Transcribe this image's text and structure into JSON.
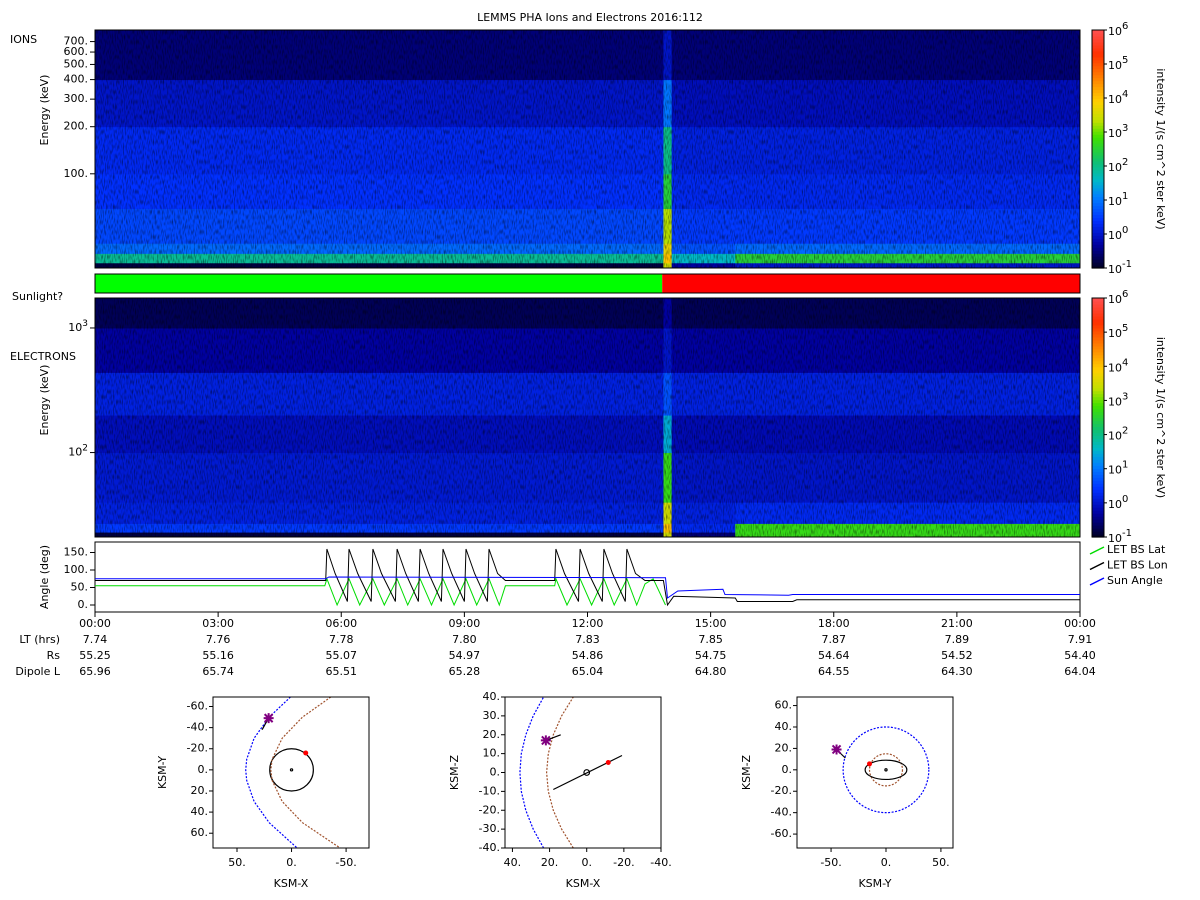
{
  "chart_data": [
    {
      "type": "heatmap",
      "title": "LEMMS PHA Ions and Electrons  2016:112",
      "label": "IONS",
      "ylabel": "Energy (keV)",
      "log_y": true,
      "ylim": [
        25,
        830
      ],
      "yticks": [
        {
          "value": 100,
          "label": "100."
        },
        {
          "value": 200,
          "label": "200."
        },
        {
          "value": 300,
          "label": "300."
        },
        {
          "value": 400,
          "label": "400."
        },
        {
          "value": 500,
          "label": "500."
        },
        {
          "value": 600,
          "label": "600."
        },
        {
          "value": 700,
          "label": "700."
        }
      ],
      "x_edges": [
        0,
        6,
        12,
        13.85,
        14.05,
        15.6,
        24
      ],
      "y_edges": [
        25,
        27,
        31,
        36,
        60,
        100,
        200,
        400,
        830
      ],
      "values": [
        [
          0.15,
          0.15,
          0.15,
          3000,
          0.5,
          1
        ],
        [
          80,
          80,
          80,
          10000,
          40,
          300
        ],
        [
          8,
          8,
          8,
          5000,
          5,
          8
        ],
        [
          4,
          4,
          4,
          2000,
          3,
          3
        ],
        [
          2.5,
          2.5,
          2.5,
          300,
          2,
          2
        ],
        [
          2,
          2,
          2,
          100,
          1.5,
          1.5
        ],
        [
          1,
          1,
          1,
          10,
          0.8,
          0.8
        ],
        [
          0.3,
          0.3,
          0.3,
          1,
          0.3,
          0.3
        ]
      ],
      "colorbar": {
        "label": "intensity 1/(s cm^2 ster keV)",
        "lim": [
          0.1,
          1000000
        ],
        "ticks": [
          {
            "value": 0.1,
            "label": "10",
            "exponent": "-1"
          },
          {
            "value": 1,
            "label": "10",
            "exponent": "0"
          },
          {
            "value": 10,
            "label": "10",
            "exponent": "1"
          },
          {
            "value": 100,
            "label": "10",
            "exponent": "2"
          },
          {
            "value": 1000,
            "label": "10",
            "exponent": "3"
          },
          {
            "value": 10000,
            "label": "10",
            "exponent": "4"
          },
          {
            "value": 100000,
            "label": "10",
            "exponent": "5"
          },
          {
            "value": 1000000,
            "label": "10",
            "exponent": "6"
          }
        ]
      }
    },
    {
      "type": "state",
      "label": "Sunlight?",
      "x_edges": [
        0,
        13.82,
        24
      ],
      "colors": [
        "#00ff00",
        "#ff0000"
      ]
    },
    {
      "type": "heatmap",
      "label": "ELECTRONS",
      "ylabel": "Energy (keV)",
      "log_y": true,
      "ylim": [
        21,
        1740
      ],
      "yticks": [
        {
          "value": 100,
          "label": "10",
          "exponent": "2"
        },
        {
          "value": 1000,
          "label": "10",
          "exponent": "3"
        }
      ],
      "x_edges": [
        0,
        6,
        12,
        13.85,
        14.05,
        15.6,
        24
      ],
      "y_edges": [
        21,
        23,
        27,
        40,
        100,
        200,
        440,
        1000,
        1740
      ],
      "values": [
        [
          0.15,
          0.15,
          0.15,
          3000,
          0.3,
          500
        ],
        [
          3,
          3,
          3,
          10000,
          2,
          500
        ],
        [
          1.5,
          1.5,
          1.5,
          3000,
          1.5,
          2
        ],
        [
          1.2,
          1.2,
          1.2,
          500,
          1,
          1
        ],
        [
          0.8,
          0.8,
          0.8,
          30,
          0.7,
          0.7
        ],
        [
          1.5,
          1.5,
          1.5,
          5,
          1.5,
          1.5
        ],
        [
          0.5,
          0.5,
          0.5,
          1,
          0.5,
          0.5
        ],
        [
          0.2,
          0.2,
          0.2,
          0.5,
          0.2,
          0.2
        ]
      ],
      "colorbar": {
        "label": "intensity 1/(s cm^2 ster keV)",
        "lim": [
          0.1,
          1000000
        ],
        "ticks": [
          {
            "value": 0.1,
            "label": "10",
            "exponent": "-1"
          },
          {
            "value": 1,
            "label": "10",
            "exponent": "0"
          },
          {
            "value": 10,
            "label": "10",
            "exponent": "1"
          },
          {
            "value": 100,
            "label": "10",
            "exponent": "2"
          },
          {
            "value": 1000,
            "label": "10",
            "exponent": "3"
          },
          {
            "value": 10000,
            "label": "10",
            "exponent": "4"
          },
          {
            "value": 100000,
            "label": "10",
            "exponent": "5"
          },
          {
            "value": 1000000,
            "label": "10",
            "exponent": "6"
          }
        ]
      }
    },
    {
      "type": "line",
      "ylabel": "Angle (deg)",
      "ylim": [
        -20,
        180
      ],
      "yticks": [
        {
          "value": 0,
          "label": "0."
        },
        {
          "value": 50,
          "label": "50."
        },
        {
          "value": 100,
          "label": "100."
        },
        {
          "value": 150,
          "label": "150."
        }
      ],
      "xlim": [
        0,
        24
      ],
      "xticks": [
        {
          "value": 0,
          "label": "00:00"
        },
        {
          "value": 3,
          "label": "03:00"
        },
        {
          "value": 6,
          "label": "06:00"
        },
        {
          "value": 9,
          "label": "09:00"
        },
        {
          "value": 12,
          "label": "12:00"
        },
        {
          "value": 15,
          "label": "15:00"
        },
        {
          "value": 18,
          "label": "18:00"
        },
        {
          "value": 21,
          "label": "21:00"
        },
        {
          "value": 24,
          "label": "00:00"
        }
      ],
      "series": [
        {
          "name": "LET BS Lat",
          "color": "#00dd00",
          "x": [
            0,
            5.6,
            5.65,
            5.9,
            6.19,
            6.45,
            6.77,
            7.05,
            7.36,
            7.62,
            7.92,
            8.2,
            8.48,
            8.75,
            9.04,
            9.3,
            9.6,
            9.85,
            10.0,
            11.2,
            11.23,
            11.5,
            11.82,
            12.1,
            12.4,
            12.65,
            12.96,
            13.2,
            13.4,
            13.6,
            13.9
          ],
          "values": [
            55,
            55,
            75,
            0,
            75,
            0,
            75,
            0,
            75,
            0,
            75,
            0,
            75,
            0,
            75,
            0,
            75,
            0,
            55,
            55,
            75,
            0,
            75,
            0,
            75,
            0,
            75,
            0,
            60,
            75,
            0
          ]
        },
        {
          "name": "LET BS Lon",
          "color": "#000000",
          "x": [
            0,
            5.62,
            5.65,
            5.85,
            6.15,
            6.19,
            6.4,
            6.73,
            6.77,
            6.98,
            7.32,
            7.36,
            7.57,
            7.88,
            7.92,
            8.13,
            8.44,
            8.48,
            8.69,
            9.0,
            9.04,
            9.25,
            9.56,
            9.6,
            9.81,
            10.0,
            11.2,
            11.23,
            11.44,
            11.78,
            11.82,
            12.03,
            12.36,
            12.4,
            12.61,
            12.92,
            12.96,
            13.17,
            13.4,
            13.85,
            13.95,
            14.1,
            15.6,
            15.65,
            17.0,
            17.1,
            24
          ],
          "values": [
            70,
            70,
            160,
            90,
            10,
            160,
            90,
            10,
            160,
            90,
            10,
            160,
            90,
            10,
            160,
            90,
            10,
            160,
            90,
            10,
            160,
            90,
            10,
            160,
            90,
            70,
            70,
            160,
            90,
            10,
            160,
            90,
            10,
            160,
            90,
            10,
            160,
            90,
            70,
            70,
            0,
            25,
            20,
            10,
            10,
            15,
            15
          ]
        },
        {
          "name": "Sun Angle",
          "color": "#0000ff",
          "x": [
            0,
            5.62,
            5.7,
            13.9,
            13.95,
            14.2,
            15.3,
            15.35,
            16.9,
            17.0,
            24
          ],
          "values": [
            75,
            75,
            80,
            78,
            20,
            40,
            45,
            30,
            28,
            30,
            30
          ]
        }
      ],
      "ephemeris": [
        {
          "label": "LT (hrs)",
          "values": [
            "7.74",
            "7.76",
            "7.78",
            "7.80",
            "7.83",
            "7.85",
            "7.87",
            "7.89",
            "7.91"
          ]
        },
        {
          "label": "Rs",
          "values": [
            "55.25",
            "55.16",
            "55.07",
            "54.97",
            "54.86",
            "54.75",
            "54.64",
            "54.52",
            "54.40"
          ]
        },
        {
          "label": "Dipole L",
          "values": [
            "65.96",
            "65.74",
            "65.51",
            "65.28",
            "65.04",
            "64.80",
            "64.55",
            "64.30",
            "64.04"
          ]
        }
      ]
    },
    {
      "type": "orbit",
      "xlabel": "KSM-X",
      "ylabel": "KSM-Y",
      "xlim": [
        72,
        -71
      ],
      "ylim": [
        74,
        -69
      ],
      "xticks": [
        {
          "value": 50,
          "label": "50."
        },
        {
          "value": 0,
          "label": "0."
        },
        {
          "value": -50,
          "label": "-50."
        }
      ],
      "yticks": [
        {
          "value": -60,
          "label": "-60."
        },
        {
          "value": -40,
          "label": "-40."
        },
        {
          "value": -20,
          "label": "-20."
        },
        {
          "value": 0,
          "label": "0."
        },
        {
          "value": 20,
          "label": "20."
        },
        {
          "value": 40,
          "label": "40."
        },
        {
          "value": 60,
          "label": "60."
        }
      ],
      "curves": [
        {
          "color": "#0000ff",
          "dashed": true,
          "x": [
            1,
            20.5,
            34.3,
            41.1,
            42,
            41.1,
            34.3,
            20.5,
            -5.1
          ],
          "y": [
            -69,
            -50,
            -30,
            -10,
            0,
            10,
            30,
            50,
            74
          ]
        },
        {
          "color": "#a0522d",
          "dashed": true,
          "x": [
            -36,
            -10,
            8.6,
            17.8,
            19,
            17.8,
            8.6,
            -10,
            -44.5
          ],
          "y": [
            -69,
            -50,
            -30,
            -10,
            0,
            10,
            30,
            50,
            74
          ]
        },
        {
          "color": "#000000",
          "dashed": false,
          "x": [
            21,
            27
          ],
          "y": [
            -49,
            -38
          ]
        }
      ],
      "ellipses": [
        {
          "cx": 0,
          "cy": 0,
          "rx": 20,
          "ry": 20,
          "color": "#000000"
        },
        {
          "cx": 0,
          "cy": 0,
          "rx": 1,
          "ry": 1,
          "color": "#000000"
        }
      ],
      "points": [
        {
          "x": 21,
          "y": -49,
          "color": "#800080",
          "symbol": "x"
        },
        {
          "x": -13,
          "y": -16,
          "color": "#ff0000",
          "symbol": "dot"
        }
      ]
    },
    {
      "type": "orbit",
      "xlabel": "KSM-X",
      "ylabel": "KSM-Z",
      "xlim": [
        44,
        -40
      ],
      "ylim": [
        -40,
        40
      ],
      "xticks": [
        {
          "value": 40,
          "label": "40."
        },
        {
          "value": 20,
          "label": "20."
        },
        {
          "value": 0,
          "label": "0."
        },
        {
          "value": -20,
          "label": "-20."
        },
        {
          "value": -40,
          "label": "-40."
        }
      ],
      "yticks": [
        {
          "value": 40,
          "label": "40."
        },
        {
          "value": 30,
          "label": "30."
        },
        {
          "value": 20,
          "label": "20."
        },
        {
          "value": 10,
          "label": "10."
        },
        {
          "value": 0,
          "label": "0."
        },
        {
          "value": -10,
          "label": "-10."
        },
        {
          "value": -20,
          "label": "-20."
        },
        {
          "value": -30,
          "label": "-30."
        },
        {
          "value": -40,
          "label": "-40."
        }
      ],
      "curves": [
        {
          "color": "#0000ff",
          "dashed": true,
          "x": [
            23.2,
            28.8,
            32.8,
            35.2,
            36,
            35.2,
            32.8,
            28.8,
            23.2
          ],
          "y": [
            -40,
            -30,
            -20,
            -10,
            0,
            10,
            20,
            30,
            40
          ]
        },
        {
          "color": "#a0522d",
          "dashed": true,
          "x": [
            7.2,
            13.5,
            18,
            20.7,
            21.6,
            20.7,
            18,
            13.5,
            7.2
          ],
          "y": [
            -40,
            -30,
            -20,
            -10,
            0,
            10,
            20,
            30,
            40
          ]
        },
        {
          "color": "#000000",
          "dashed": false,
          "x": [
            18,
            -19
          ],
          "y": [
            -9,
            9
          ]
        },
        {
          "color": "#000000",
          "dashed": false,
          "x": [
            22,
            14
          ],
          "y": [
            17,
            20
          ]
        }
      ],
      "ellipses": [
        {
          "cx": 0,
          "cy": 0,
          "rx": 1.5,
          "ry": 1.5,
          "color": "#000000"
        }
      ],
      "points": [
        {
          "x": 22,
          "y": 17,
          "color": "#800080",
          "symbol": "x"
        },
        {
          "x": -11.6,
          "y": 5.3,
          "color": "#ff0000",
          "symbol": "dot"
        }
      ]
    },
    {
      "type": "orbit",
      "xlabel": "KSM-Y",
      "ylabel": "KSM-Z",
      "xlim": [
        -81,
        61
      ],
      "ylim": [
        -73,
        68
      ],
      "xticks": [
        {
          "value": -50,
          "label": "-50."
        },
        {
          "value": 0,
          "label": "0."
        },
        {
          "value": 50,
          "label": "50."
        }
      ],
      "yticks": [
        {
          "value": 60,
          "label": "60."
        },
        {
          "value": 40,
          "label": "40."
        },
        {
          "value": 20,
          "label": "20."
        },
        {
          "value": 0,
          "label": "0."
        },
        {
          "value": -20,
          "label": "-20."
        },
        {
          "value": -40,
          "label": "-40."
        },
        {
          "value": -60,
          "label": "-60."
        }
      ],
      "curves": [
        {
          "color": "#000000",
          "dashed": false,
          "x": [
            -45,
            -37
          ],
          "y": [
            19,
            11
          ]
        }
      ],
      "ellipses": [
        {
          "cx": 0,
          "cy": 0,
          "rx": 39,
          "ry": 40,
          "color": "#0000ff",
          "dashed": true
        },
        {
          "cx": 0,
          "cy": 0,
          "rx": 15,
          "ry": 15,
          "color": "#a0522d",
          "dashed": true
        },
        {
          "cx": 0,
          "cy": 0,
          "rx": 19,
          "ry": 9,
          "color": "#000000"
        },
        {
          "cx": 0,
          "cy": 0,
          "rx": 1,
          "ry": 1,
          "color": "#000000"
        }
      ],
      "points": [
        {
          "x": -45,
          "y": 19,
          "color": "#800080",
          "symbol": "x"
        },
        {
          "x": -15,
          "y": 5.6,
          "color": "#ff0000",
          "symbol": "dot"
        }
      ]
    }
  ]
}
